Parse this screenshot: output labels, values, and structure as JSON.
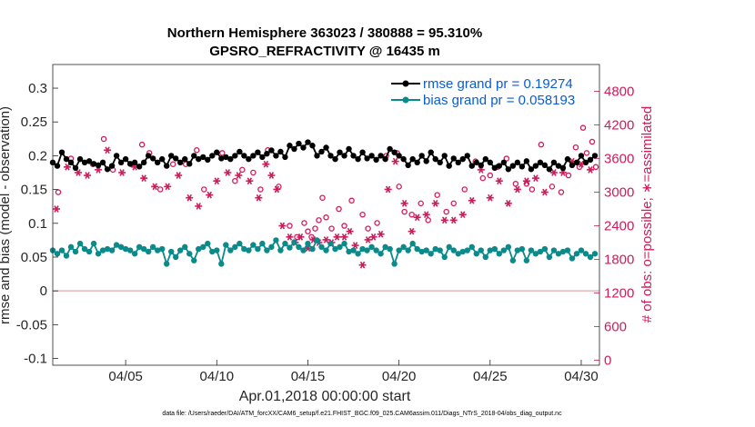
{
  "chart_data": {
    "type": "line",
    "title_line1": "Northern Hemisphere 363023 / 380888 = 95.310%",
    "title_line2": "GPSRO_REFRACTIVITY @ 16435 m",
    "xlabel": "Apr.01,2018 00:00:00 start",
    "ylabel": "rmse and bias (model - observation)",
    "ylabel_right": "# of obs: o=possible; ∗=assimilated",
    "footer": "data file: /Users/raeder/DAI/ATM_forcXX/CAM6_setup/f.e21.FHIST_BGC.f09_025.CAM6assim.011/Diags_NTrS_2018-04/obs_diag_output.nc",
    "x_ticks": [
      "04/05",
      "04/10",
      "04/15",
      "04/20",
      "04/25",
      "04/30"
    ],
    "x_tick_days": [
      5,
      10,
      15,
      20,
      25,
      30
    ],
    "xlim": [
      1,
      31
    ],
    "y_ticks": [
      "0.3",
      "0.25",
      "0.2",
      "0.15",
      "0.1",
      "0.05",
      "0",
      "-0.05",
      "-0.1"
    ],
    "y_tick_values": [
      0.3,
      0.25,
      0.2,
      0.15,
      0.1,
      0.05,
      0,
      -0.05,
      -0.1
    ],
    "ylim": [
      -0.11,
      0.335
    ],
    "y2_ticks": [
      "4800",
      "4200",
      "3600",
      "3000",
      "2400",
      "1800",
      "1200",
      "600",
      "0"
    ],
    "y2_tick_values": [
      4800,
      4200,
      3600,
      3000,
      2400,
      1800,
      1200,
      600,
      0
    ],
    "y2lim": [
      -90,
      5280
    ],
    "legend": [
      {
        "label": "rmse grand pr = 0.19274",
        "color": "#000000"
      },
      {
        "label": "bias grand pr = 0.058193",
        "color": "#0a8a8a"
      }
    ],
    "colors": {
      "rmse": "#000000",
      "bias": "#0a8a8a",
      "obs": "#d01a5a",
      "zero": "#e8b4b8"
    },
    "series": [
      {
        "name": "rmse",
        "x": [
          1.0,
          1.25,
          1.5,
          1.75,
          2.0,
          2.25,
          2.5,
          2.75,
          3.0,
          3.25,
          3.5,
          3.75,
          4.0,
          4.25,
          4.5,
          4.75,
          5.0,
          5.25,
          5.5,
          5.75,
          6.0,
          6.25,
          6.5,
          6.75,
          7.0,
          7.25,
          7.5,
          7.75,
          8.0,
          8.25,
          8.5,
          8.75,
          9.0,
          9.25,
          9.5,
          9.75,
          10.0,
          10.25,
          10.5,
          10.75,
          11.0,
          11.25,
          11.5,
          11.75,
          12.0,
          12.25,
          12.5,
          12.75,
          13.0,
          13.25,
          13.5,
          13.75,
          14.0,
          14.25,
          14.5,
          14.75,
          15.0,
          15.25,
          15.5,
          15.75,
          16.0,
          16.25,
          16.5,
          16.75,
          17.0,
          17.25,
          17.5,
          17.75,
          18.0,
          18.25,
          18.5,
          18.75,
          19.0,
          19.25,
          19.5,
          19.75,
          20.0,
          20.25,
          20.5,
          20.75,
          21.0,
          21.25,
          21.5,
          21.75,
          22.0,
          22.25,
          22.5,
          22.75,
          23.0,
          23.25,
          23.5,
          23.75,
          24.0,
          24.25,
          24.5,
          24.75,
          25.0,
          25.25,
          25.5,
          25.75,
          26.0,
          26.25,
          26.5,
          26.75,
          27.0,
          27.25,
          27.5,
          27.75,
          28.0,
          28.25,
          28.5,
          28.75,
          29.0,
          29.25,
          29.5,
          29.75,
          30.0,
          30.25,
          30.5,
          30.75
        ],
        "values": [
          0.19,
          0.185,
          0.205,
          0.195,
          0.19,
          0.182,
          0.195,
          0.19,
          0.192,
          0.188,
          0.186,
          0.19,
          0.18,
          0.185,
          0.2,
          0.19,
          0.195,
          0.188,
          0.19,
          0.184,
          0.19,
          0.2,
          0.196,
          0.19,
          0.195,
          0.185,
          0.2,
          0.196,
          0.19,
          0.195,
          0.188,
          0.2,
          0.195,
          0.198,
          0.194,
          0.2,
          0.205,
          0.196,
          0.198,
          0.195,
          0.2,
          0.206,
          0.2,
          0.195,
          0.2,
          0.205,
          0.198,
          0.203,
          0.208,
          0.2,
          0.206,
          0.198,
          0.215,
          0.21,
          0.218,
          0.212,
          0.22,
          0.215,
          0.2,
          0.206,
          0.212,
          0.2,
          0.195,
          0.205,
          0.2,
          0.21,
          0.2,
          0.195,
          0.205,
          0.196,
          0.2,
          0.194,
          0.2,
          0.195,
          0.21,
          0.205,
          0.2,
          0.195,
          0.186,
          0.195,
          0.19,
          0.2,
          0.192,
          0.205,
          0.195,
          0.19,
          0.2,
          0.185,
          0.196,
          0.19,
          0.195,
          0.2,
          0.185,
          0.19,
          0.186,
          0.195,
          0.19,
          0.182,
          0.185,
          0.19,
          0.18,
          0.185,
          0.19,
          0.184,
          0.192,
          0.18,
          0.185,
          0.19,
          0.186,
          0.18,
          0.19,
          0.185,
          0.182,
          0.195,
          0.186,
          0.19,
          0.2,
          0.19,
          0.194,
          0.2
        ]
      },
      {
        "name": "bias",
        "x": [
          1.0,
          1.25,
          1.5,
          1.75,
          2.0,
          2.25,
          2.5,
          2.75,
          3.0,
          3.25,
          3.5,
          3.75,
          4.0,
          4.25,
          4.5,
          4.75,
          5.0,
          5.25,
          5.5,
          5.75,
          6.0,
          6.25,
          6.5,
          6.75,
          7.0,
          7.25,
          7.5,
          7.75,
          8.0,
          8.25,
          8.5,
          8.75,
          9.0,
          9.25,
          9.5,
          9.75,
          10.0,
          10.25,
          10.5,
          10.75,
          11.0,
          11.25,
          11.5,
          11.75,
          12.0,
          12.25,
          12.5,
          12.75,
          13.0,
          13.25,
          13.5,
          13.75,
          14.0,
          14.25,
          14.5,
          14.75,
          15.0,
          15.25,
          15.5,
          15.75,
          16.0,
          16.25,
          16.5,
          16.75,
          17.0,
          17.25,
          17.5,
          17.75,
          18.0,
          18.25,
          18.5,
          18.75,
          19.0,
          19.25,
          19.5,
          19.75,
          20.0,
          20.25,
          20.5,
          20.75,
          21.0,
          21.25,
          21.5,
          21.75,
          22.0,
          22.25,
          22.5,
          22.75,
          23.0,
          23.25,
          23.5,
          23.75,
          24.0,
          24.25,
          24.5,
          24.75,
          25.0,
          25.25,
          25.5,
          25.75,
          26.0,
          26.25,
          26.5,
          26.75,
          27.0,
          27.25,
          27.5,
          27.75,
          28.0,
          28.25,
          28.5,
          28.75,
          29.0,
          29.25,
          29.5,
          29.75,
          30.0,
          30.25,
          30.5,
          30.75
        ],
        "values": [
          0.06,
          0.055,
          0.06,
          0.052,
          0.065,
          0.058,
          0.07,
          0.062,
          0.058,
          0.07,
          0.055,
          0.06,
          0.062,
          0.06,
          0.068,
          0.065,
          0.062,
          0.06,
          0.055,
          0.065,
          0.062,
          0.058,
          0.065,
          0.06,
          0.062,
          0.04,
          0.058,
          0.05,
          0.06,
          0.065,
          0.055,
          0.045,
          0.062,
          0.065,
          0.07,
          0.058,
          0.06,
          0.04,
          0.068,
          0.06,
          0.065,
          0.07,
          0.062,
          0.06,
          0.068,
          0.062,
          0.07,
          0.06,
          0.065,
          0.075,
          0.06,
          0.07,
          0.064,
          0.072,
          0.065,
          0.06,
          0.07,
          0.062,
          0.075,
          0.065,
          0.06,
          0.07,
          0.062,
          0.065,
          0.07,
          0.058,
          0.06,
          0.055,
          0.062,
          0.06,
          0.065,
          0.06,
          0.055,
          0.065,
          0.062,
          0.04,
          0.06,
          0.065,
          0.06,
          0.07,
          0.062,
          0.058,
          0.06,
          0.055,
          0.062,
          0.06,
          0.05,
          0.065,
          0.06,
          0.055,
          0.058,
          0.06,
          0.065,
          0.055,
          0.06,
          0.05,
          0.06,
          0.062,
          0.055,
          0.06,
          0.065,
          0.045,
          0.06,
          0.062,
          0.045,
          0.06,
          0.055,
          0.058,
          0.062,
          0.05,
          0.06,
          0.055,
          0.058,
          0.06,
          0.048,
          0.055,
          0.06,
          0.055,
          0.05,
          0.055
        ]
      },
      {
        "name": "obs possible",
        "marker": "o",
        "x": [
          1.3,
          2.0,
          3.2,
          3.8,
          4.3,
          5.3,
          5.9,
          6.3,
          6.9,
          7.6,
          8.3,
          8.9,
          9.3,
          10.3,
          11.0,
          11.4,
          12.0,
          12.4,
          12.8,
          13.4,
          14.0,
          14.4,
          14.8,
          15.0,
          15.2,
          15.4,
          15.6,
          15.8,
          16.0,
          16.3,
          16.7,
          17.0,
          17.4,
          18.0,
          18.3,
          18.8,
          19.3,
          19.9,
          20.0,
          20.3,
          20.7,
          21.2,
          21.6,
          22.1,
          22.6,
          23.0,
          23.6,
          24.2,
          24.6,
          25.0,
          25.4,
          25.9,
          26.4,
          27.0,
          27.3,
          27.8,
          28.4,
          28.9,
          29.3,
          29.7,
          29.9,
          30.1,
          30.3,
          30.6,
          30.8
        ],
        "values": [
          3000,
          3600,
          3500,
          3950,
          3400,
          3500,
          3850,
          3700,
          3050,
          3500,
          3500,
          3750,
          3050,
          3700,
          3200,
          3400,
          3350,
          3050,
          3750,
          3100,
          2400,
          2200,
          2450,
          2300,
          2200,
          2350,
          2500,
          2900,
          2550,
          2350,
          2700,
          2400,
          2850,
          2600,
          2350,
          2450,
          3650,
          3700,
          3100,
          2650,
          2600,
          2800,
          2500,
          2950,
          2650,
          2800,
          3050,
          3550,
          3250,
          3300,
          3450,
          3600,
          3150,
          3150,
          3050,
          3850,
          3100,
          3000,
          3300,
          3800,
          3450,
          4150,
          3700,
          3900,
          3450
        ]
      },
      {
        "name": "obs assimilated",
        "marker": "*",
        "x": [
          1.2,
          1.8,
          2.4,
          2.9,
          3.5,
          4.0,
          4.8,
          5.5,
          6.0,
          6.6,
          7.3,
          7.9,
          8.5,
          9.0,
          9.6,
          10.0,
          10.6,
          11.2,
          11.8,
          12.3,
          12.7,
          13.0,
          13.3,
          13.6,
          14.0,
          14.3,
          14.6,
          15.0,
          15.3,
          15.6,
          16.0,
          16.3,
          16.6,
          17.0,
          17.3,
          17.6,
          18.0,
          18.3,
          18.6,
          19.0,
          19.4,
          19.8,
          20.3,
          20.7,
          21.0,
          21.5,
          22.0,
          22.5,
          23.0,
          23.5,
          24.0,
          24.5,
          25.0,
          25.5,
          26.0,
          26.5,
          27.0,
          27.5,
          28.0,
          28.5,
          29.0,
          29.5,
          30.0,
          30.5
        ],
        "values": [
          2700,
          3450,
          3350,
          3300,
          3400,
          3750,
          3350,
          3450,
          3250,
          3100,
          3100,
          3300,
          2900,
          2750,
          2950,
          3200,
          3350,
          3300,
          3200,
          2900,
          3500,
          3300,
          3050,
          2400,
          2200,
          2100,
          2200,
          2000,
          2150,
          2100,
          2150,
          2100,
          2200,
          2200,
          2300,
          2050,
          1700,
          2150,
          2200,
          2250,
          3050,
          3550,
          2800,
          2300,
          2550,
          2600,
          2800,
          2500,
          2500,
          2600,
          2850,
          3400,
          2900,
          3200,
          2800,
          3050,
          3200,
          3250,
          3000,
          3350,
          3350,
          3550,
          3500,
          3400
        ]
      }
    ]
  }
}
